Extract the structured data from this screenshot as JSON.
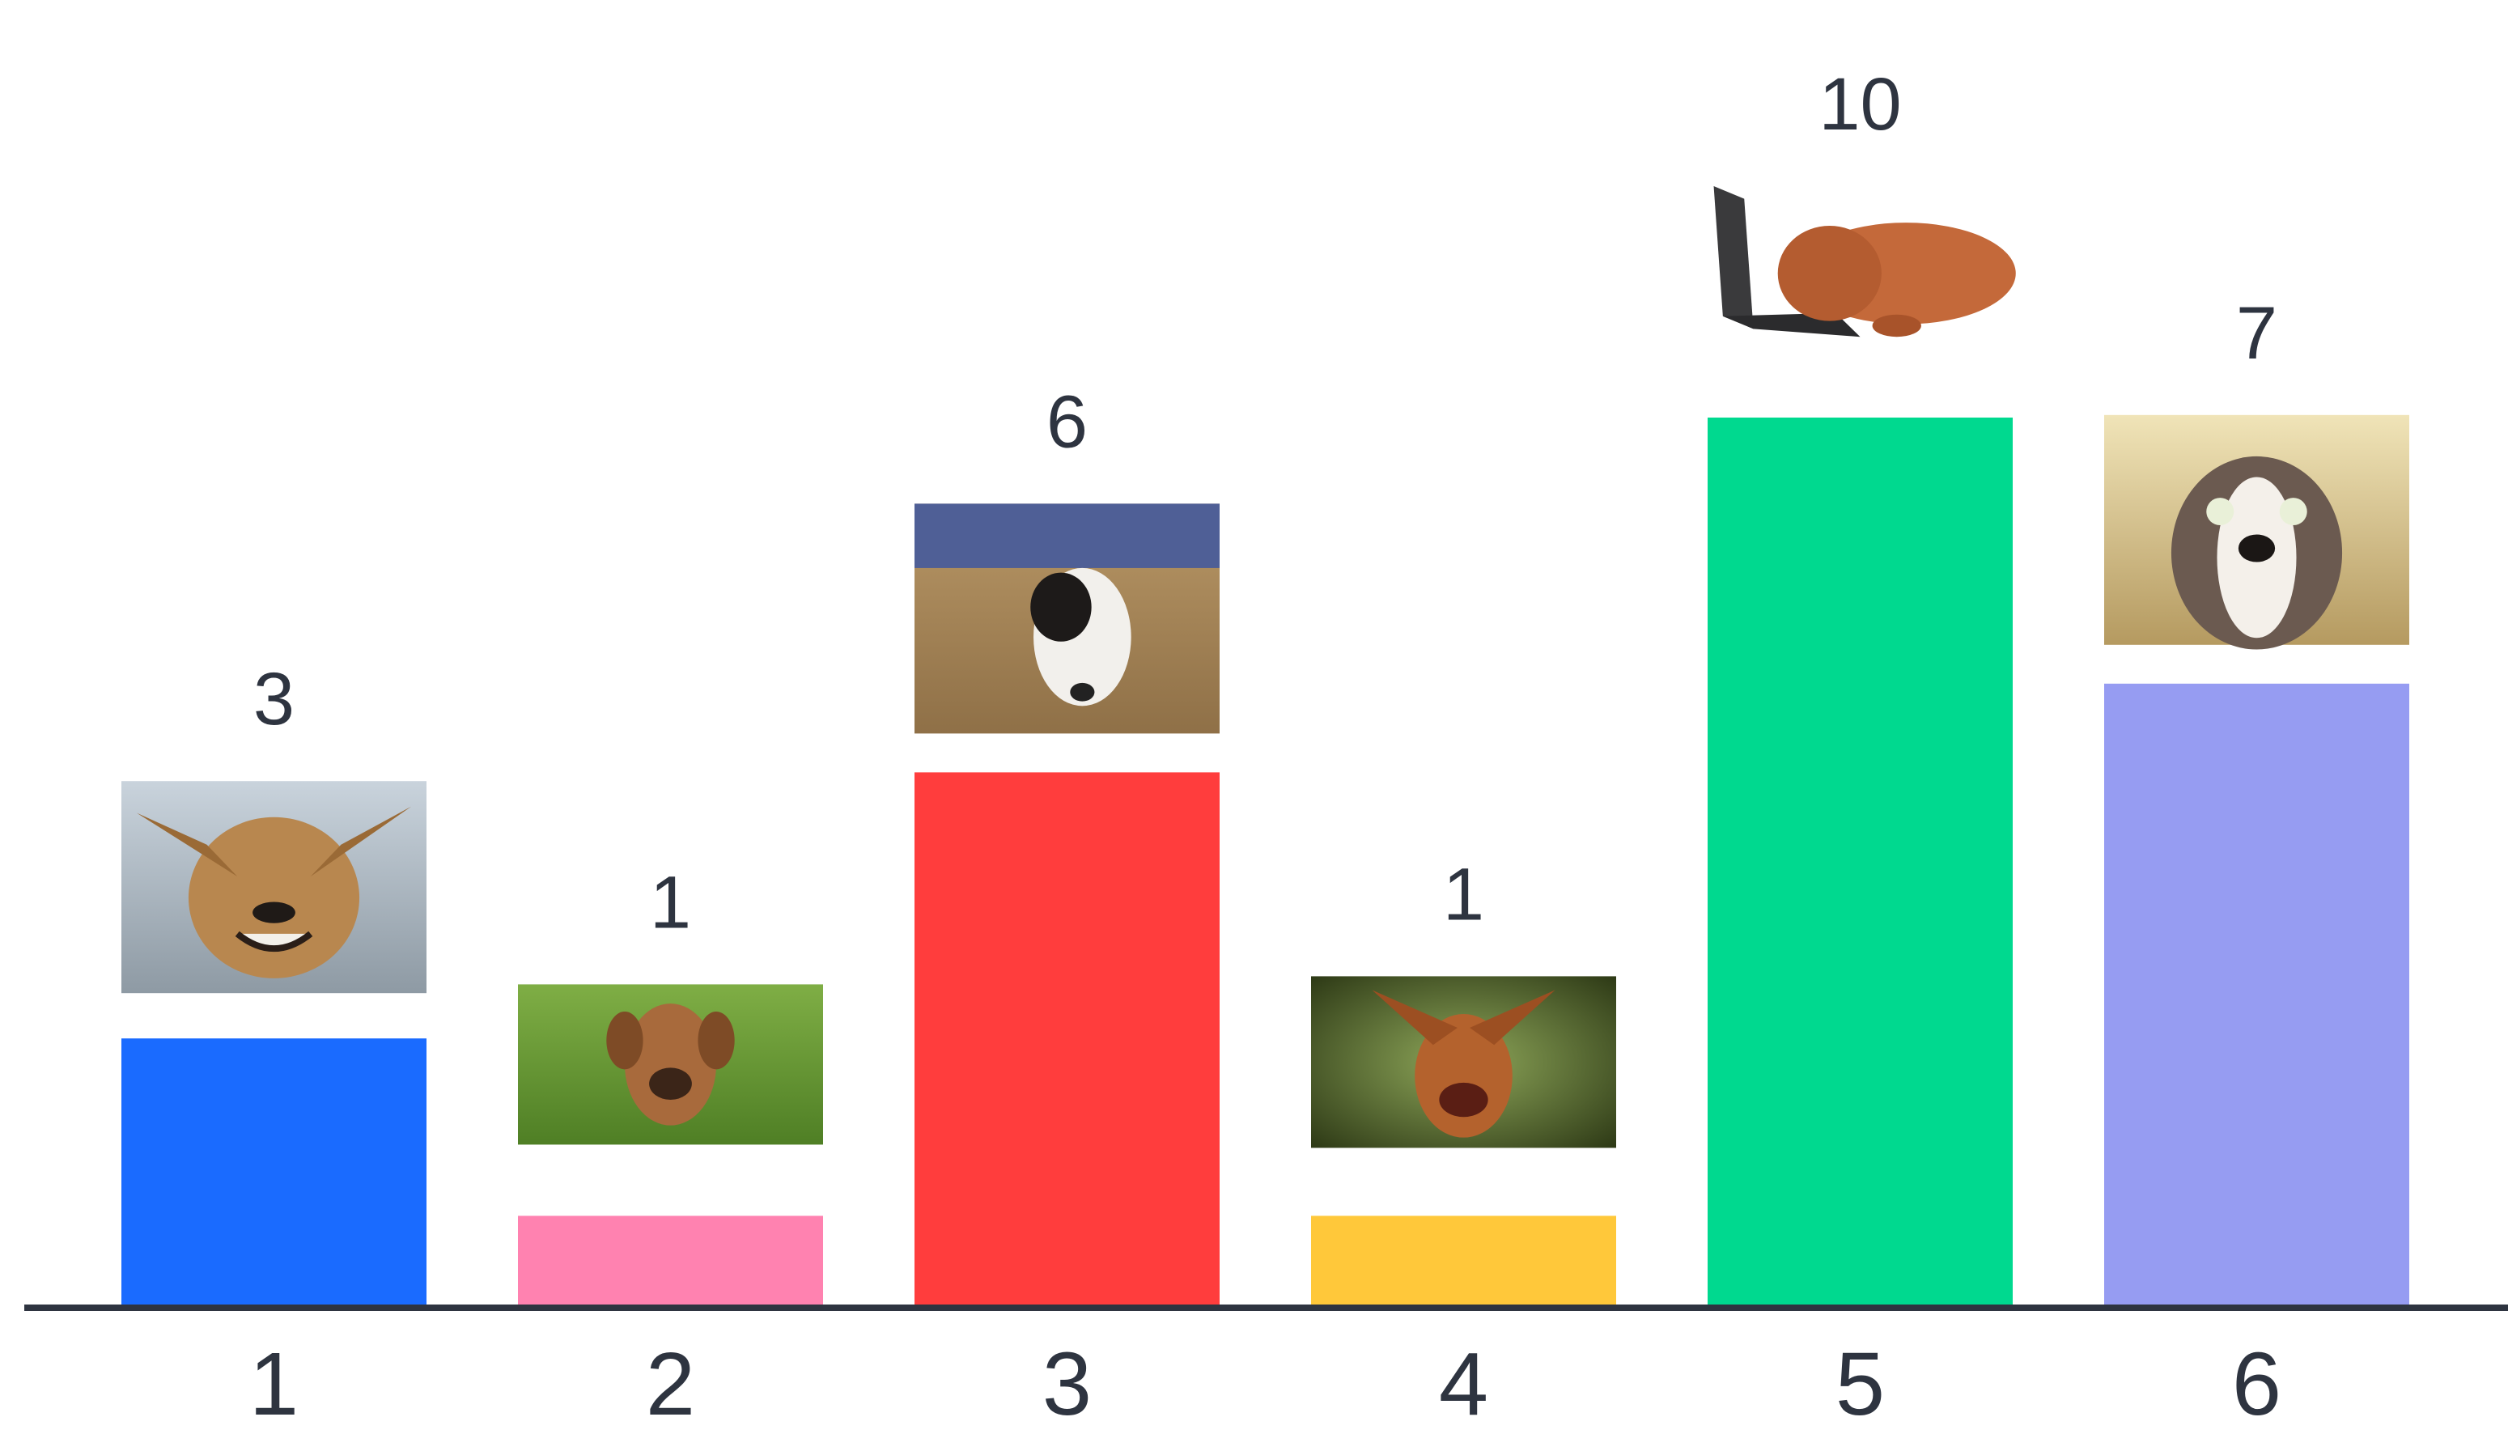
{
  "chart_data": {
    "type": "bar",
    "categories": [
      "1",
      "2",
      "3",
      "4",
      "5",
      "6"
    ],
    "values": [
      3,
      1,
      6,
      1,
      10,
      7
    ],
    "colors": [
      "#1a6bff",
      "#ff82b0",
      "#ff3d3d",
      "#ffc83a",
      "#00d98f",
      "#969cf2"
    ],
    "bar_images": [
      "smiling-dog-photo",
      "grumpy-puggle-photo",
      "dog-under-couch-photo",
      "excited-dog-photo",
      "dog-on-laptop-photo",
      "startled-dog-photo"
    ],
    "ylim": [
      0,
      10
    ],
    "axis_color": "#2e3440",
    "grid": false,
    "title": "",
    "xlabel": "",
    "ylabel": ""
  }
}
